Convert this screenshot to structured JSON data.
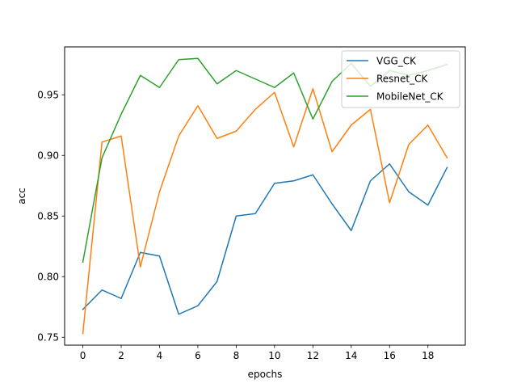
{
  "chart_data": {
    "type": "line",
    "title": "",
    "xlabel": "epochs",
    "ylabel": "acc",
    "xlim": [
      -0.95,
      19.95
    ],
    "ylim": [
      0.7435,
      0.9895
    ],
    "xticks": [
      0,
      2,
      4,
      6,
      8,
      10,
      12,
      14,
      16,
      18
    ],
    "yticks": [
      0.75,
      0.8,
      0.85,
      0.9,
      0.95
    ],
    "xtick_labels": [
      "0",
      "2",
      "4",
      "6",
      "8",
      "10",
      "12",
      "14",
      "16",
      "18"
    ],
    "ytick_labels": [
      "0.75",
      "0.80",
      "0.85",
      "0.90",
      "0.95"
    ],
    "grid": false,
    "legend_position": "top-right",
    "x": [
      0,
      1,
      2,
      3,
      4,
      5,
      6,
      7,
      8,
      9,
      10,
      11,
      12,
      13,
      14,
      15,
      16,
      17,
      18,
      19
    ],
    "series": [
      {
        "name": "VGG_CK",
        "color": "#1f77b4",
        "values": [
          0.773,
          0.789,
          0.782,
          0.82,
          0.817,
          0.769,
          0.776,
          0.796,
          0.85,
          0.852,
          0.877,
          0.879,
          0.884,
          0.86,
          0.838,
          0.879,
          0.893,
          0.87,
          0.859,
          0.89
        ]
      },
      {
        "name": "Resnet_CK",
        "color": "#ff7f0e",
        "values": [
          0.753,
          0.911,
          0.916,
          0.808,
          0.87,
          0.916,
          0.941,
          0.914,
          0.92,
          0.938,
          0.952,
          0.907,
          0.955,
          0.903,
          0.925,
          0.938,
          0.861,
          0.909,
          0.925,
          0.898
        ]
      },
      {
        "name": "MobileNet_CK",
        "color": "#2ca02c",
        "values": [
          0.812,
          0.898,
          0.934,
          0.966,
          0.956,
          0.979,
          0.98,
          0.959,
          0.97,
          0.963,
          0.956,
          0.968,
          0.93,
          0.961,
          0.976,
          0.957,
          0.97,
          0.966,
          0.97,
          0.975
        ]
      }
    ]
  }
}
